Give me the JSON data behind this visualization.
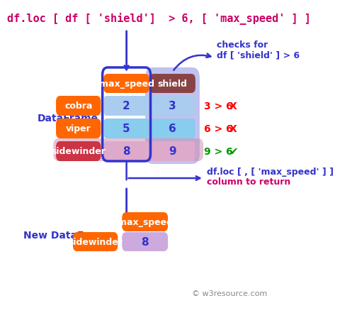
{
  "title_code": "df.loc [ df [ 'shield']  > 6, [ 'max_speed' ] ]",
  "title_color": "#cc0066",
  "bg_color": "#ffffff",
  "dataframe_label": "DataFrame",
  "dataframe_label_color": "#3333cc",
  "new_dataframe_label": "New DataFrame",
  "new_dataframe_label_color": "#3333cc",
  "col_headers": [
    "max_speed",
    "shield"
  ],
  "col_header_color": "#ffffff",
  "col_header_bg": "#cc5500",
  "row_labels": [
    "cobra",
    "viper",
    "sidewinder"
  ],
  "row_label_color": "#ffffff",
  "row_label_bg": "#ff6600",
  "sidewinder_row_label_bg": "#cc3333",
  "data": [
    [
      2,
      3
    ],
    [
      5,
      6
    ],
    [
      8,
      9
    ]
  ],
  "cell_bg_col0": [
    "#aaccff",
    "#88ddff",
    "#ddaacc"
  ],
  "cell_bg_col1": [
    "#aaccff",
    "#88ddff",
    "#ddaacc"
  ],
  "check_texts": [
    "3 > 6  X",
    "6 > 6  X",
    "9 > 6"
  ],
  "check_colors": [
    "#ff0000",
    "#ff0000",
    "#009900"
  ],
  "checks_for_label1": "checks for",
  "checks_for_label2": "df [ 'shield' ] > 6",
  "checks_for_color": "#3333cc",
  "column_return_label1": "df.loc [ , [ 'max_speed' ] ]",
  "column_return_label2": "column to return",
  "column_return_color1": "#3333cc",
  "column_return_color2": "#cc0066",
  "watermark": "© w3resource.com",
  "watermark_color": "#888888"
}
